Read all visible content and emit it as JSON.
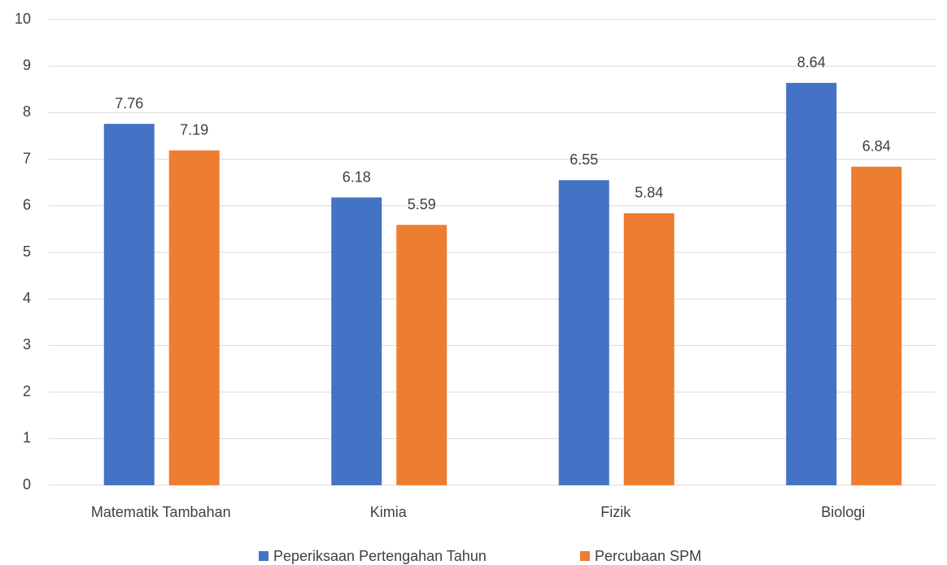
{
  "chart_data": {
    "type": "bar",
    "categories": [
      "Matematik Tambahan",
      "Kimia",
      "Fizik",
      "Biologi"
    ],
    "series": [
      {
        "name": "Peperiksaan Pertengahan Tahun",
        "color": "#4472c4",
        "values": [
          7.76,
          6.18,
          6.55,
          8.64
        ]
      },
      {
        "name": "Percubaan SPM",
        "color": "#ed7d31",
        "values": [
          7.19,
          5.59,
          5.84,
          6.84
        ]
      }
    ],
    "ylim": [
      0,
      10
    ],
    "yticks": [
      0,
      1,
      2,
      3,
      4,
      5,
      6,
      7,
      8,
      9,
      10
    ],
    "grid": true,
    "legend": "bottom"
  }
}
